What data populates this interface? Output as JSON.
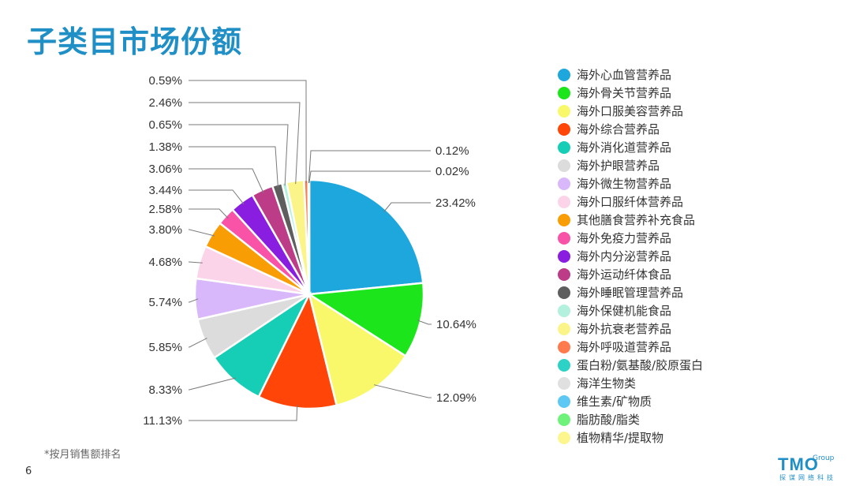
{
  "title": "子类目市场份额",
  "footnote": "*按月销售额排名",
  "page_number": "6",
  "logo": {
    "main": "TMO",
    "group": "Group",
    "subtitle": "探谋网络科技"
  },
  "colors": {
    "title": "#1f8fc6"
  },
  "chart_data": {
    "type": "pie",
    "title": "",
    "legend_position": "right",
    "start": "12 o'clock, clockwise",
    "slices": [
      {
        "label": "海外心血管营养品",
        "value": 23.42,
        "text": "23.42%",
        "color": "#1ea7dd"
      },
      {
        "label": "海外骨关节营养品",
        "value": 10.64,
        "text": "10.64%",
        "color": "#1ce51c"
      },
      {
        "label": "海外口服美容营养品",
        "value": 12.09,
        "text": "12.09%",
        "color": "#f8f86a"
      },
      {
        "label": "海外综合营养品",
        "value": 11.13,
        "text": "11.13%",
        "color": "#ff4508"
      },
      {
        "label": "海外消化道营养品",
        "value": 8.33,
        "text": "8.33%",
        "color": "#16ceb6"
      },
      {
        "label": "海外护眼营养品",
        "value": 5.85,
        "text": "5.85%",
        "color": "#dcdcdc"
      },
      {
        "label": "海外微生物营养品",
        "value": 5.74,
        "text": "5.74%",
        "color": "#d8b8fa"
      },
      {
        "label": "海外口服纤体营养品",
        "value": 4.68,
        "text": "4.68%",
        "color": "#fcd4e9"
      },
      {
        "label": "其他膳食营养补充食品",
        "value": 3.8,
        "text": "3.80%",
        "color": "#f99d05"
      },
      {
        "label": "海外免疫力营养品",
        "value": 2.58,
        "text": "2.58%",
        "color": "#f953a7"
      },
      {
        "label": "海外内分泌营养品",
        "value": 3.44,
        "text": "3.44%",
        "color": "#8a1ee0"
      },
      {
        "label": "海外运动纤体食品",
        "value": 3.06,
        "text": "3.06%",
        "color": "#bc3c88"
      },
      {
        "label": "海外睡眠管理营养品",
        "value": 1.38,
        "text": "1.38%",
        "color": "#5e5e5e"
      },
      {
        "label": "海外保健机能食品",
        "value": 0.65,
        "text": "0.65%",
        "color": "#b3f0de"
      },
      {
        "label": "海外抗衰老营养品",
        "value": 2.46,
        "text": "2.46%",
        "color": "#fbf589"
      },
      {
        "label": "海外呼吸道营养品",
        "value": 0.59,
        "text": "0.59%",
        "color": "#ff7b4d"
      },
      {
        "label": "蛋白粉/氨基酸/胶原蛋白",
        "value": 0.12,
        "text": "0.12%",
        "color": "#2bd2c5"
      },
      {
        "label": "海洋生物类",
        "value": 0.02,
        "text": "0.02%",
        "color": "#e0e0e0"
      }
    ],
    "legend_only": [
      {
        "label": "维生素/矿物质",
        "color": "#5ec8f4"
      },
      {
        "label": "脂肪酸/脂类",
        "color": "#6ef27a"
      },
      {
        "label": "植物精华/提取物",
        "color": "#fdf58e"
      }
    ]
  }
}
